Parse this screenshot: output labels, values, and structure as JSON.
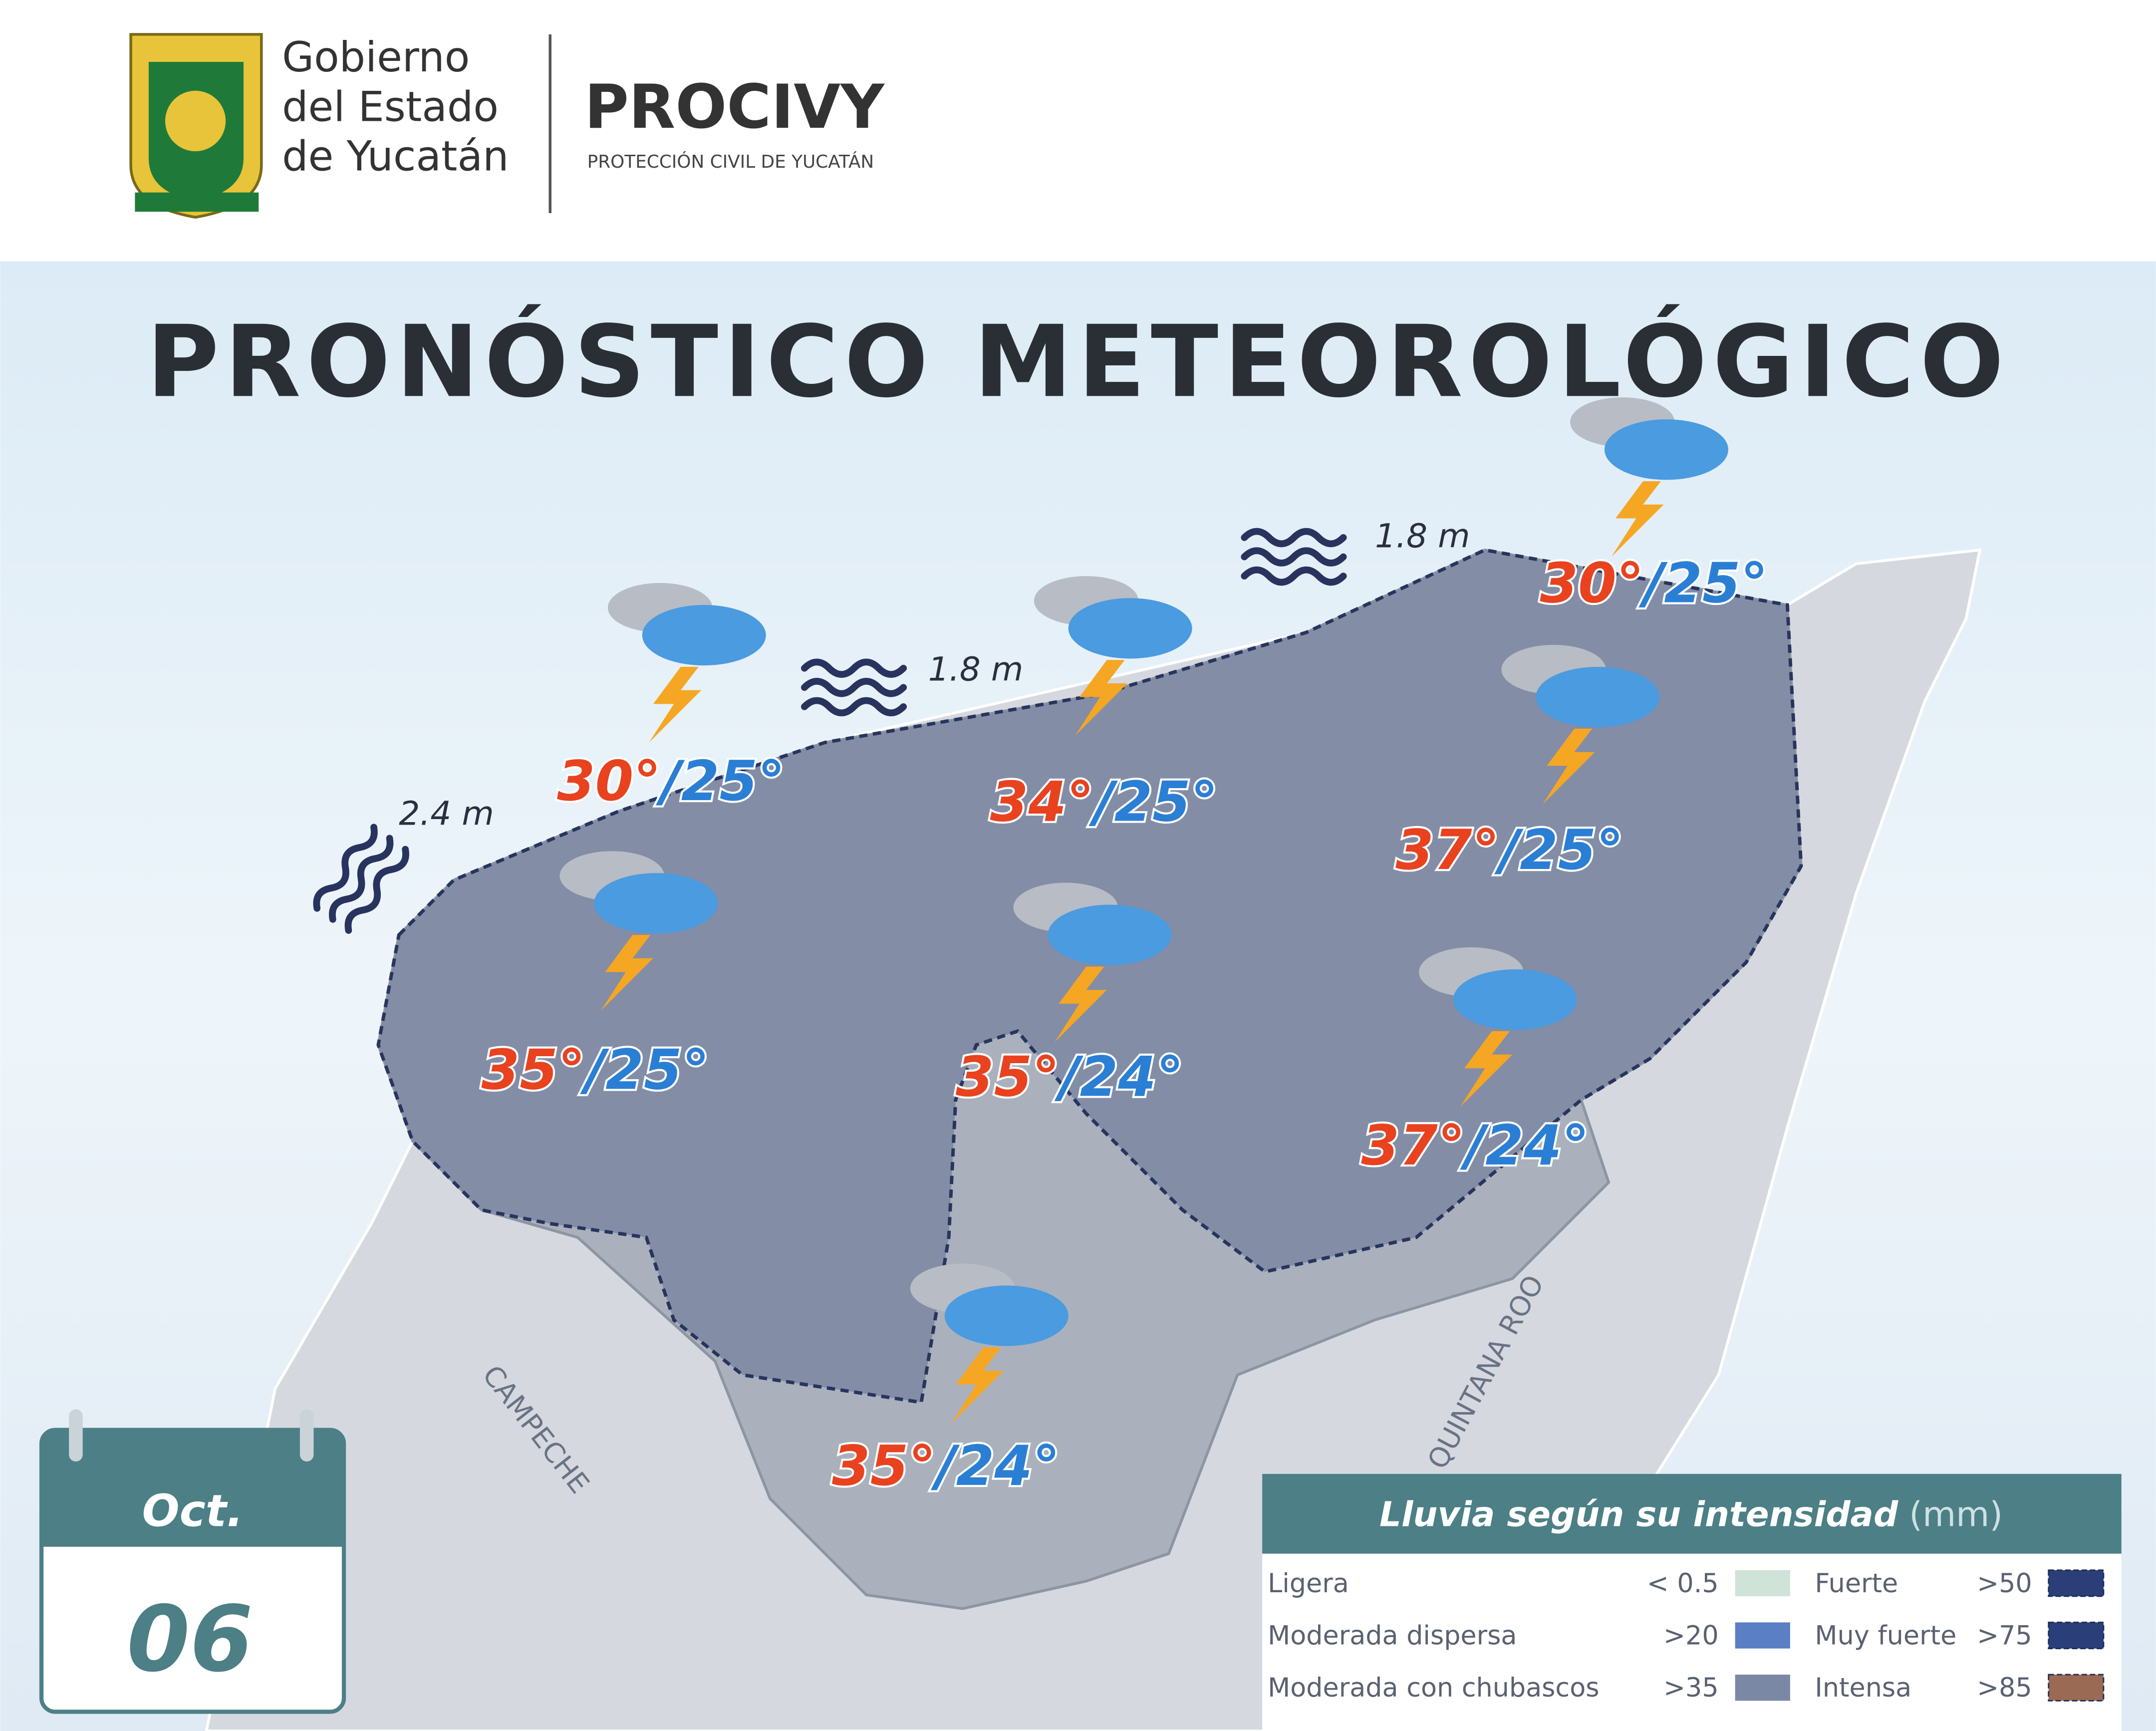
{
  "header": {
    "logo_lines": [
      "Gobierno",
      "del Estado",
      "de Yucatán"
    ],
    "brand": "PROCIVY",
    "brand_subtitle": "PROTECCIÓN CIVIL DE YUCATÁN"
  },
  "title": "PRONÓSTICO METEOROLÓGICO",
  "forecasts": [
    {
      "max": "30°",
      "min": "/25°"
    },
    {
      "max": "34°",
      "min": "/25°"
    },
    {
      "max": "30°",
      "min": "/25°"
    },
    {
      "max": "37°",
      "min": "/25°"
    },
    {
      "max": "35°",
      "min": "/25°"
    },
    {
      "max": "35°",
      "min": "/24°"
    },
    {
      "max": "37°",
      "min": "/24°"
    },
    {
      "max": "35°",
      "min": "/24°"
    }
  ],
  "waves": [
    "1.8 m",
    "1.8 m",
    "2.4 m"
  ],
  "regions": [
    "CAMPECHE",
    "QUINTANA ROO"
  ],
  "calendar": {
    "month": "Oct.",
    "day": "06"
  },
  "legend": {
    "title": "Lluvia según su intensidad",
    "unit": "(mm)",
    "items": [
      {
        "name": "Ligera",
        "threshold": "< 0.5",
        "color": "#cfe3d8"
      },
      {
        "name": "Moderada dispersa",
        "threshold": ">20",
        "color": "#5b7fc4"
      },
      {
        "name": "Moderada con chubascos",
        "threshold": ">35",
        "color": "#7b88a5"
      },
      {
        "name": "Fuerte",
        "threshold": ">50",
        "color": "#2c3e78"
      },
      {
        "name": "Muy fuerte",
        "threshold": ">75",
        "color": "#2a3f7a"
      },
      {
        "name": "Intensa",
        "threshold": ">85",
        "color": "#9a6a55"
      }
    ]
  }
}
